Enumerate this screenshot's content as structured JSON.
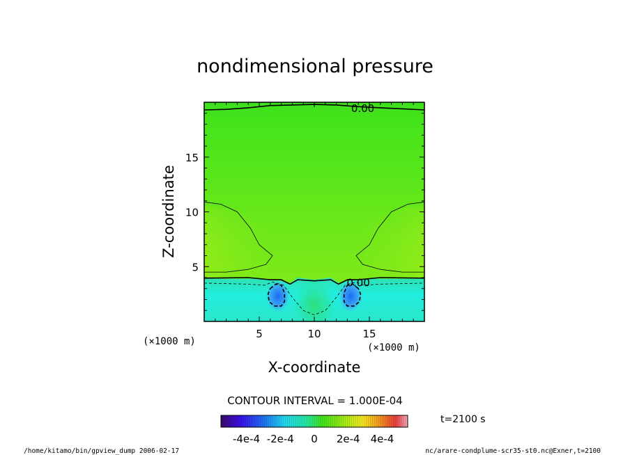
{
  "chart_data": {
    "type": "contour",
    "title": "nondimensional pressure",
    "xlabel": "X-coordinate",
    "ylabel": "Z-coordinate",
    "x_unit": "(×1000 m)",
    "y_unit": "(×1000 m)",
    "xlim": [
      0,
      20
    ],
    "ylim": [
      0,
      20
    ],
    "x_ticks": [
      5,
      10,
      15
    ],
    "y_ticks": [
      5,
      10,
      15
    ],
    "contour_labels": [
      {
        "text": "0.00",
        "x": 14.4,
        "z": 19.5
      },
      {
        "text": "0.00",
        "x": 14.0,
        "z": 3.6
      }
    ],
    "contour_interval_text": "CONTOUR INTERVAL = 1.000E-04",
    "time_label": "t=2100 s",
    "colorbar": {
      "range": [
        -0.00055,
        0.00055
      ],
      "tick_values": [
        -0.0004,
        -0.0002,
        0,
        0.0002,
        0.0004
      ],
      "tick_labels": [
        "-4e-4",
        "-2e-4",
        "0",
        "2e-4",
        "4e-4"
      ]
    }
  },
  "footer": {
    "left": "/home/kitamo/bin/gpview_dump  2006-02-17",
    "right": "nc/arare-condplume-scr35-st0.nc@Exner,t=2100"
  }
}
